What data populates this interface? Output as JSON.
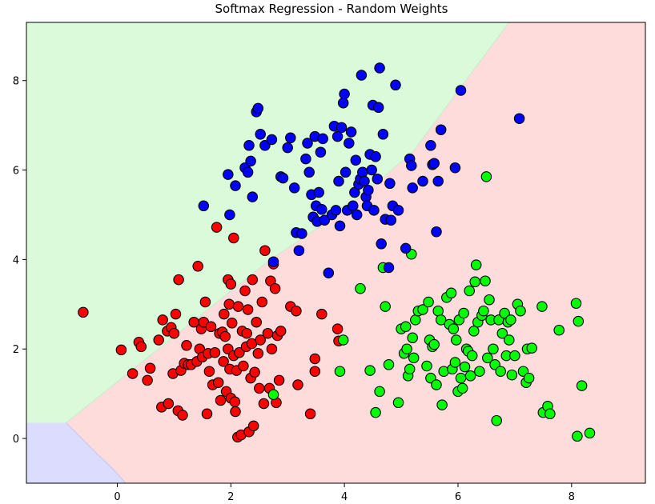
{
  "chart_data": {
    "type": "scatter",
    "title": "Softmax Regression - Random Weights",
    "xlabel": "",
    "ylabel": "",
    "xlim": [
      -1.6,
      9.3
    ],
    "ylim": [
      -1.0,
      9.3
    ],
    "xticks": [
      0,
      2,
      4,
      6,
      8
    ],
    "yticks": [
      0,
      2,
      4,
      6,
      8
    ],
    "grid": false,
    "legend": "none",
    "regions": [
      {
        "class": "green",
        "color": "#d9fbd9"
      },
      {
        "class": "red",
        "color": "#ffdcdc"
      },
      {
        "class": "blue",
        "color": "#dcdcff"
      }
    ],
    "boundaries": {
      "green_red": [
        [
          -0.9,
          0.35
        ],
        [
          2.7,
          4.0
        ],
        [
          4.0,
          5.1
        ],
        [
          5.2,
          6.4
        ],
        [
          6.9,
          9.3
        ]
      ],
      "blue_red": [
        [
          -0.9,
          0.35
        ],
        [
          -0.35,
          -0.35
        ],
        [
          -0.1,
          -0.65
        ],
        [
          0.15,
          -1.0
        ]
      ]
    },
    "series": [
      {
        "color": "#ff0000",
        "points": [
          [
            -0.6,
            2.82
          ],
          [
            0.07,
            1.98
          ],
          [
            0.27,
            1.45
          ],
          [
            0.38,
            2.15
          ],
          [
            0.42,
            2.05
          ],
          [
            0.53,
            1.3
          ],
          [
            0.58,
            1.57
          ],
          [
            0.73,
            2.2
          ],
          [
            0.78,
            0.7
          ],
          [
            0.8,
            2.65
          ],
          [
            0.88,
            2.4
          ],
          [
            0.9,
            0.78
          ],
          [
            0.95,
            2.48
          ],
          [
            0.98,
            1.45
          ],
          [
            1.0,
            2.35
          ],
          [
            1.03,
            2.78
          ],
          [
            1.07,
            0.62
          ],
          [
            1.08,
            3.55
          ],
          [
            1.12,
            1.52
          ],
          [
            1.15,
            0.52
          ],
          [
            1.18,
            1.68
          ],
          [
            1.22,
            2.08
          ],
          [
            1.25,
            1.65
          ],
          [
            1.3,
            1.65
          ],
          [
            1.35,
            2.6
          ],
          [
            1.4,
            1.72
          ],
          [
            1.42,
            3.85
          ],
          [
            1.45,
            2.0
          ],
          [
            1.48,
            2.45
          ],
          [
            1.5,
            1.82
          ],
          [
            1.52,
            2.6
          ],
          [
            1.55,
            3.05
          ],
          [
            1.58,
            0.55
          ],
          [
            1.6,
            1.9
          ],
          [
            1.62,
            1.5
          ],
          [
            1.65,
            2.5
          ],
          [
            1.68,
            1.2
          ],
          [
            1.72,
            1.92
          ],
          [
            1.75,
            4.72
          ],
          [
            1.78,
            1.25
          ],
          [
            1.8,
            2.35
          ],
          [
            1.82,
            0.85
          ],
          [
            1.85,
            2.38
          ],
          [
            1.87,
            1.72
          ],
          [
            1.88,
            2.78
          ],
          [
            1.9,
            2.28
          ],
          [
            1.92,
            1.05
          ],
          [
            1.95,
            3.55
          ],
          [
            1.95,
            2.0
          ],
          [
            1.97,
            3.0
          ],
          [
            1.98,
            1.55
          ],
          [
            2.0,
            0.9
          ],
          [
            2.0,
            3.45
          ],
          [
            2.02,
            2.58
          ],
          [
            2.05,
            1.85
          ],
          [
            2.05,
            4.48
          ],
          [
            2.07,
            0.82
          ],
          [
            2.08,
            0.6
          ],
          [
            2.1,
            1.52
          ],
          [
            2.12,
            0.03
          ],
          [
            2.13,
            2.95
          ],
          [
            2.15,
            1.92
          ],
          [
            2.18,
            0.08
          ],
          [
            2.2,
            2.4
          ],
          [
            2.22,
            1.62
          ],
          [
            2.25,
            3.3
          ],
          [
            2.27,
            2.05
          ],
          [
            2.28,
            2.35
          ],
          [
            2.3,
            2.88
          ],
          [
            2.32,
            0.15
          ],
          [
            2.35,
            1.35
          ],
          [
            2.37,
            2.12
          ],
          [
            2.38,
            3.55
          ],
          [
            2.4,
            0.28
          ],
          [
            2.42,
            1.48
          ],
          [
            2.45,
            2.6
          ],
          [
            2.48,
            1.9
          ],
          [
            2.5,
            1.12
          ],
          [
            2.52,
            2.2
          ],
          [
            2.55,
            3.05
          ],
          [
            2.58,
            0.78
          ],
          [
            2.6,
            4.2
          ],
          [
            2.65,
            2.35
          ],
          [
            2.68,
            1.12
          ],
          [
            2.7,
            3.52
          ],
          [
            2.72,
            2.0
          ],
          [
            2.75,
            3.9
          ],
          [
            2.78,
            3.35
          ],
          [
            2.8,
            0.8
          ],
          [
            2.82,
            2.3
          ],
          [
            2.85,
            1.3
          ],
          [
            2.88,
            2.4
          ],
          [
            3.05,
            2.95
          ],
          [
            3.15,
            2.85
          ],
          [
            3.18,
            1.2
          ],
          [
            3.4,
            0.55
          ],
          [
            3.48,
            1.78
          ],
          [
            3.48,
            1.5
          ],
          [
            3.6,
            2.78
          ],
          [
            3.88,
            2.45
          ],
          [
            3.9,
            2.18
          ]
        ]
      },
      {
        "color": "#00ff00",
        "points": [
          [
            2.75,
            0.98
          ],
          [
            3.92,
            1.5
          ],
          [
            3.98,
            2.2
          ],
          [
            4.28,
            3.35
          ],
          [
            4.45,
            1.52
          ],
          [
            4.55,
            0.58
          ],
          [
            4.62,
            1.05
          ],
          [
            4.68,
            3.82
          ],
          [
            4.72,
            2.95
          ],
          [
            4.78,
            1.65
          ],
          [
            4.95,
            0.8
          ],
          [
            5.0,
            2.45
          ],
          [
            5.05,
            1.9
          ],
          [
            5.08,
            2.5
          ],
          [
            5.1,
            2.0
          ],
          [
            5.12,
            1.4
          ],
          [
            5.15,
            1.55
          ],
          [
            5.18,
            4.12
          ],
          [
            5.2,
            2.25
          ],
          [
            5.22,
            1.8
          ],
          [
            5.25,
            2.65
          ],
          [
            5.3,
            2.85
          ],
          [
            5.38,
            2.88
          ],
          [
            5.45,
            1.62
          ],
          [
            5.48,
            3.05
          ],
          [
            5.5,
            2.2
          ],
          [
            5.52,
            1.35
          ],
          [
            5.55,
            2.05
          ],
          [
            5.58,
            2.1
          ],
          [
            5.62,
            1.2
          ],
          [
            5.65,
            2.85
          ],
          [
            5.7,
            2.65
          ],
          [
            5.72,
            0.75
          ],
          [
            5.75,
            1.5
          ],
          [
            5.8,
            3.15
          ],
          [
            5.85,
            2.55
          ],
          [
            5.88,
            3.25
          ],
          [
            5.9,
            1.55
          ],
          [
            5.92,
            2.45
          ],
          [
            5.95,
            1.7
          ],
          [
            5.97,
            2.2
          ],
          [
            6.0,
            1.05
          ],
          [
            6.02,
            2.65
          ],
          [
            6.05,
            1.35
          ],
          [
            6.08,
            1.12
          ],
          [
            6.1,
            2.8
          ],
          [
            6.12,
            1.6
          ],
          [
            6.15,
            2.0
          ],
          [
            6.18,
            1.95
          ],
          [
            6.2,
            3.3
          ],
          [
            6.22,
            1.4
          ],
          [
            6.25,
            1.85
          ],
          [
            6.28,
            2.4
          ],
          [
            6.3,
            3.5
          ],
          [
            6.32,
            3.88
          ],
          [
            6.35,
            2.6
          ],
          [
            6.38,
            1.5
          ],
          [
            6.42,
            2.75
          ],
          [
            6.45,
            2.85
          ],
          [
            6.48,
            3.52
          ],
          [
            6.5,
            5.85
          ],
          [
            6.52,
            1.8
          ],
          [
            6.55,
            3.1
          ],
          [
            6.58,
            2.65
          ],
          [
            6.62,
            2.0
          ],
          [
            6.65,
            1.65
          ],
          [
            6.68,
            0.4
          ],
          [
            6.72,
            2.65
          ],
          [
            6.75,
            1.5
          ],
          [
            6.78,
            2.35
          ],
          [
            6.82,
            2.8
          ],
          [
            6.85,
            1.85
          ],
          [
            6.88,
            2.6
          ],
          [
            6.9,
            2.2
          ],
          [
            6.93,
            2.65
          ],
          [
            6.95,
            1.42
          ],
          [
            7.0,
            1.85
          ],
          [
            7.05,
            3.0
          ],
          [
            7.1,
            2.85
          ],
          [
            7.15,
            1.5
          ],
          [
            7.2,
            1.25
          ],
          [
            7.22,
            2.0
          ],
          [
            7.25,
            1.35
          ],
          [
            7.3,
            2.02
          ],
          [
            7.48,
            2.95
          ],
          [
            7.5,
            0.58
          ],
          [
            7.58,
            0.72
          ],
          [
            7.62,
            0.55
          ],
          [
            7.78,
            2.42
          ],
          [
            8.08,
            3.02
          ],
          [
            8.1,
            0.05
          ],
          [
            8.12,
            2.62
          ],
          [
            8.18,
            1.18
          ],
          [
            8.32,
            0.12
          ]
        ]
      },
      {
        "color": "#0000ff",
        "points": [
          [
            1.52,
            5.2
          ],
          [
            1.95,
            5.9
          ],
          [
            1.98,
            5.0
          ],
          [
            2.08,
            5.65
          ],
          [
            2.25,
            6.05
          ],
          [
            2.3,
            5.95
          ],
          [
            2.32,
            6.55
          ],
          [
            2.35,
            6.2
          ],
          [
            2.38,
            5.4
          ],
          [
            2.45,
            7.3
          ],
          [
            2.48,
            7.38
          ],
          [
            2.52,
            6.8
          ],
          [
            2.6,
            6.55
          ],
          [
            2.72,
            6.68
          ],
          [
            2.75,
            3.95
          ],
          [
            2.88,
            5.85
          ],
          [
            2.92,
            5.82
          ],
          [
            3.0,
            6.5
          ],
          [
            3.05,
            6.72
          ],
          [
            3.12,
            5.6
          ],
          [
            3.15,
            4.6
          ],
          [
            3.2,
            4.2
          ],
          [
            3.25,
            4.58
          ],
          [
            3.32,
            6.25
          ],
          [
            3.35,
            6.6
          ],
          [
            3.38,
            5.95
          ],
          [
            3.42,
            5.45
          ],
          [
            3.45,
            4.95
          ],
          [
            3.48,
            6.75
          ],
          [
            3.5,
            5.2
          ],
          [
            3.52,
            4.85
          ],
          [
            3.55,
            5.5
          ],
          [
            3.58,
            6.4
          ],
          [
            3.6,
            5.12
          ],
          [
            3.62,
            6.7
          ],
          [
            3.65,
            4.88
          ],
          [
            3.72,
            3.7
          ],
          [
            3.78,
            5.0
          ],
          [
            3.82,
            6.98
          ],
          [
            3.85,
            5.1
          ],
          [
            3.88,
            6.75
          ],
          [
            3.9,
            5.75
          ],
          [
            3.92,
            4.75
          ],
          [
            3.95,
            6.95
          ],
          [
            3.98,
            7.5
          ],
          [
            4.0,
            7.7
          ],
          [
            4.02,
            5.95
          ],
          [
            4.05,
            5.1
          ],
          [
            4.08,
            6.6
          ],
          [
            4.12,
            6.85
          ],
          [
            4.15,
            5.2
          ],
          [
            4.18,
            5.5
          ],
          [
            4.2,
            6.22
          ],
          [
            4.22,
            5.0
          ],
          [
            4.25,
            5.68
          ],
          [
            4.28,
            5.8
          ],
          [
            4.3,
            8.12
          ],
          [
            4.32,
            5.95
          ],
          [
            4.35,
            5.75
          ],
          [
            4.38,
            5.4
          ],
          [
            4.4,
            5.2
          ],
          [
            4.42,
            5.55
          ],
          [
            4.45,
            6.35
          ],
          [
            4.48,
            6.0
          ],
          [
            4.5,
            7.45
          ],
          [
            4.52,
            5.1
          ],
          [
            4.55,
            6.3
          ],
          [
            4.58,
            5.8
          ],
          [
            4.6,
            7.4
          ],
          [
            4.62,
            8.28
          ],
          [
            4.65,
            4.35
          ],
          [
            4.68,
            6.8
          ],
          [
            4.72,
            4.9
          ],
          [
            4.78,
            3.82
          ],
          [
            4.8,
            5.7
          ],
          [
            4.82,
            4.88
          ],
          [
            4.85,
            5.2
          ],
          [
            4.9,
            7.9
          ],
          [
            4.95,
            5.1
          ],
          [
            5.08,
            4.25
          ],
          [
            5.15,
            6.25
          ],
          [
            5.18,
            6.1
          ],
          [
            5.2,
            5.6
          ],
          [
            5.38,
            5.75
          ],
          [
            5.52,
            6.55
          ],
          [
            5.55,
            6.12
          ],
          [
            5.58,
            6.15
          ],
          [
            5.62,
            4.62
          ],
          [
            5.65,
            5.75
          ],
          [
            5.7,
            6.9
          ],
          [
            5.95,
            6.05
          ],
          [
            6.05,
            7.78
          ],
          [
            7.08,
            7.15
          ]
        ]
      }
    ]
  }
}
